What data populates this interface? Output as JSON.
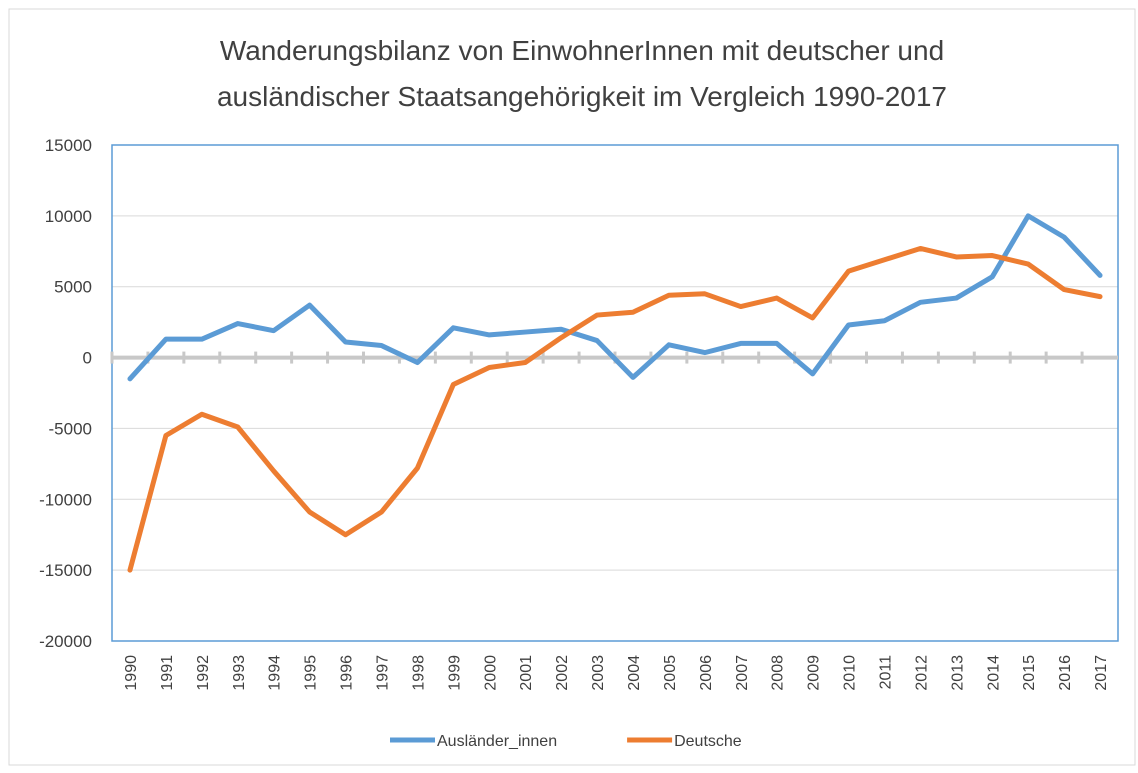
{
  "chart_data": {
    "type": "line",
    "title": [
      "Wanderungsbilanz von EinwohnerInnen mit deutscher und",
      "ausländischer Staatsangehörigkeit im Vergleich 1990-2017"
    ],
    "categories": [
      "1990",
      "1991",
      "1992",
      "1993",
      "1994",
      "1995",
      "1996",
      "1997",
      "1998",
      "1999",
      "2000",
      "2001",
      "2002",
      "2003",
      "2004",
      "2005",
      "2006",
      "2007",
      "2008",
      "2009",
      "2010",
      "2011",
      "2012",
      "2013",
      "2014",
      "2015",
      "2016",
      "2017"
    ],
    "series": [
      {
        "name": "Ausländer_innen",
        "color": "#5b9bd5",
        "values": [
          -1500,
          1300,
          1300,
          2400,
          1900,
          3700,
          1100,
          850,
          -350,
          2100,
          1600,
          1800,
          2000,
          1200,
          -1400,
          900,
          350,
          1000,
          1000,
          -1150,
          2300,
          2600,
          3900,
          4200,
          5700,
          10000,
          8500,
          5800
        ]
      },
      {
        "name": "Deutsche",
        "color": "#ed7d31",
        "values": [
          -15000,
          -5500,
          -4000,
          -4900,
          -8000,
          -10900,
          -12500,
          -10900,
          -7800,
          -1900,
          -700,
          -350,
          1400,
          3000,
          3200,
          4400,
          4500,
          3600,
          4200,
          2800,
          6100,
          6900,
          7700,
          7100,
          7200,
          6600,
          4800,
          4300
        ]
      }
    ],
    "ylim": [
      -20000,
      15000
    ],
    "yticks": [
      -20000,
      -15000,
      -10000,
      -5000,
      0,
      5000,
      10000,
      15000
    ],
    "grid": true,
    "legend": "bottom"
  }
}
